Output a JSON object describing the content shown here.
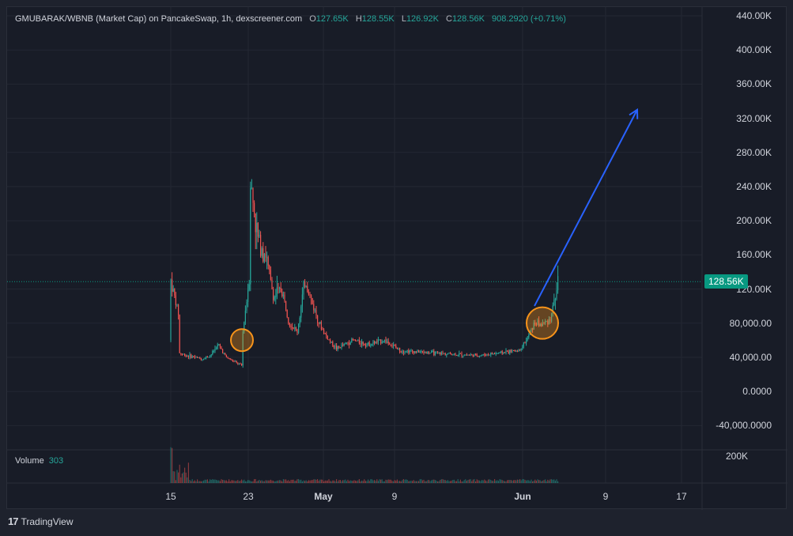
{
  "legend": {
    "symbol": "GMUBARAK/WBNB (Market Cap) on PancakeSwap, 1h, dexscreener.com",
    "open_label": "O",
    "open": "127.65K",
    "high_label": "H",
    "high": "128.55K",
    "low_label": "L",
    "low": "126.92K",
    "close_label": "C",
    "close": "128.56K",
    "change": "908.2920 (+0.71%)"
  },
  "volume_legend": {
    "label": "Volume",
    "value": "303"
  },
  "price_tag": "128.56K",
  "footer": {
    "logo": "17",
    "brand": "TradingView"
  },
  "colors": {
    "up": "#26a69a",
    "down": "#ef5350",
    "arrow": "#2962ff",
    "circle": "#f7931a",
    "tag": "#089981"
  },
  "chart_data": {
    "type": "candlestick",
    "y_ticks": [
      "440.00K",
      "400.00K",
      "360.00K",
      "320.00K",
      "280.00K",
      "240.00K",
      "200.00K",
      "160.00K",
      "120.00K",
      "80,000.00",
      "40,000.00",
      "0.0000",
      "-40,000.0000"
    ],
    "volume_ticks": [
      "200K"
    ],
    "x_ticks": [
      "15",
      "23",
      "May",
      "9",
      "Jun",
      "9",
      "17"
    ],
    "x_ticks_bold": [
      "May",
      "Jun"
    ],
    "ylim": [
      -60000,
      460000
    ],
    "series_path": [
      [
        "Apr 15",
        60000
      ],
      [
        "Apr 15",
        130000
      ],
      [
        "Apr 16",
        90000
      ],
      [
        "Apr 16",
        45000
      ],
      [
        "Apr 17",
        42000
      ],
      [
        "Apr 18",
        40000
      ],
      [
        "Apr 19",
        38000
      ],
      [
        "Apr 20",
        42000
      ],
      [
        "Apr 21",
        55000
      ],
      [
        "Apr 22",
        40000
      ],
      [
        "Apr 23",
        35000
      ],
      [
        "Apr 24",
        30000
      ],
      [
        "Apr 24",
        60000
      ],
      [
        "Apr 25",
        140000
      ],
      [
        "Apr 25",
        250000
      ],
      [
        "Apr 26",
        180000
      ],
      [
        "Apr 27",
        160000
      ],
      [
        "Apr 28",
        110000
      ],
      [
        "Apr 29",
        120000
      ],
      [
        "Apr 30",
        80000
      ],
      [
        "May 1",
        70000
      ],
      [
        "May 2",
        130000
      ],
      [
        "May 3",
        100000
      ],
      [
        "May 4",
        75000
      ],
      [
        "May 5",
        60000
      ],
      [
        "May 6",
        50000
      ],
      [
        "May 8",
        60000
      ],
      [
        "May 10",
        55000
      ],
      [
        "May 12",
        60000
      ],
      [
        "May 14",
        48000
      ],
      [
        "May 18",
        45000
      ],
      [
        "May 24",
        42000
      ],
      [
        "May 29",
        48000
      ],
      [
        "May 30",
        60000
      ],
      [
        "May 31",
        80000
      ],
      [
        "Jun 1",
        78000
      ],
      [
        "Jun 2",
        85000
      ],
      [
        "Jun 3",
        128560
      ]
    ],
    "annotations": [
      {
        "type": "circle",
        "at": [
          "Apr 24",
          60000
        ]
      },
      {
        "type": "circle",
        "at": [
          "Jun 1",
          80000
        ]
      },
      {
        "type": "arrow",
        "from": [
          "May 31",
          100000
        ],
        "to": [
          "Jun 13",
          330000
        ]
      }
    ],
    "last_price": 128560
  }
}
